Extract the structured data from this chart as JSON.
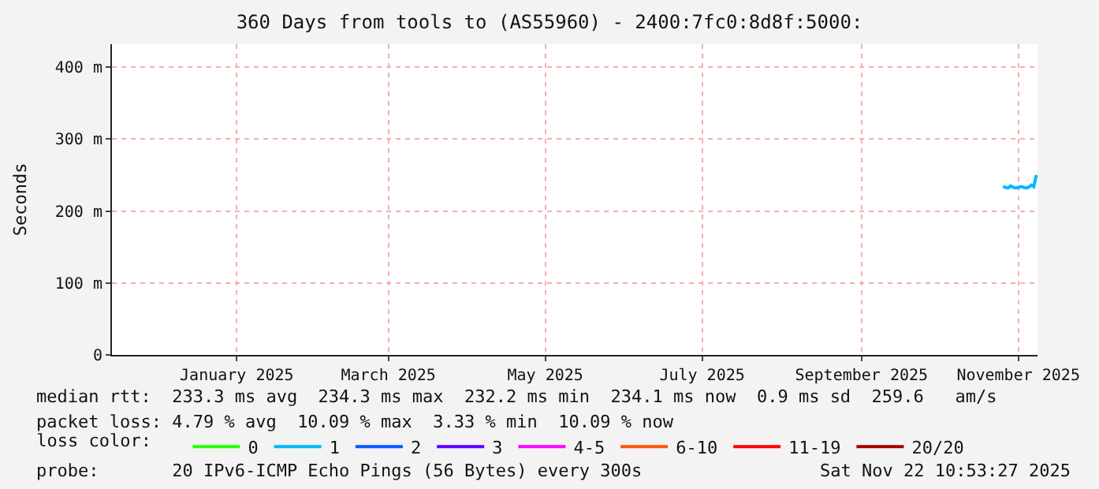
{
  "chart_data": {
    "type": "line",
    "title": "360 Days from tools to (AS55960) - 2400:7fc0:8d8f:5000:",
    "ylabel": "Seconds",
    "xlim": [
      "2024-11-27T10:53",
      "2025-11-22T10:53"
    ],
    "xticks": [
      {
        "value": "2025-01-15",
        "label": "January 2025"
      },
      {
        "value": "2025-03-15",
        "label": "March 2025"
      },
      {
        "value": "2025-05-15",
        "label": "May 2025"
      },
      {
        "value": "2025-07-15",
        "label": "July 2025"
      },
      {
        "value": "2025-09-15",
        "label": "September 2025"
      },
      {
        "value": "2025-11-15",
        "label": "November 2025"
      }
    ],
    "ylim": [
      0,
      432
    ],
    "yticks": [
      0,
      {
        "value": 100,
        "label": "100 m"
      },
      {
        "value": 200,
        "label": "200 m"
      },
      {
        "value": 300,
        "label": "300 m"
      },
      {
        "value": 400,
        "label": "400 m"
      }
    ],
    "grid": true,
    "legend": "bottom",
    "legend_title": "loss color:",
    "x": [
      "2025-11-09",
      "2025-11-10",
      "2025-11-11",
      "2025-11-12",
      "2025-11-13",
      "2025-11-14",
      "2025-11-15",
      "2025-11-16",
      "2025-11-17",
      "2025-11-18",
      "2025-11-19",
      "2025-11-20",
      "2025-11-21",
      "2025-11-22"
    ],
    "series": [
      {
        "name": "0",
        "color": "#26ff00",
        "values": [
          null,
          null,
          null,
          null,
          null,
          null,
          null,
          null,
          null,
          null,
          null,
          null,
          null,
          null
        ]
      },
      {
        "name": "1",
        "color": "#00b8ff",
        "values": [
          234,
          233,
          232,
          235,
          233,
          232,
          233,
          234,
          233,
          232,
          233,
          236,
          234,
          250
        ]
      },
      {
        "name": "2",
        "color": "#0059ff",
        "values": [
          null,
          null,
          null,
          null,
          null,
          null,
          null,
          null,
          null,
          null,
          null,
          null,
          null,
          null
        ]
      },
      {
        "name": "3",
        "color": "#5e00ff",
        "values": [
          null,
          null,
          null,
          null,
          null,
          null,
          null,
          null,
          null,
          null,
          null,
          null,
          null,
          null
        ]
      },
      {
        "name": "4-5",
        "color": "#ff00ff",
        "values": [
          null,
          null,
          null,
          null,
          null,
          null,
          null,
          null,
          null,
          null,
          null,
          null,
          null,
          null
        ]
      },
      {
        "name": "6-10",
        "color": "#ff5500",
        "values": [
          null,
          null,
          null,
          null,
          null,
          null,
          null,
          null,
          null,
          null,
          null,
          null,
          null,
          null
        ]
      },
      {
        "name": "11-19",
        "color": "#ff0000",
        "values": [
          null,
          null,
          null,
          null,
          null,
          null,
          null,
          null,
          null,
          null,
          null,
          null,
          null,
          null
        ]
      },
      {
        "name": "20/20",
        "color": "#a10000",
        "values": [
          null,
          null,
          null,
          null,
          null,
          null,
          null,
          null,
          null,
          null,
          null,
          null,
          null,
          null
        ]
      }
    ],
    "annotations": [
      "median rtt:  233.3 ms avg  234.3 ms max  232.2 ms min  234.1 ms now  0.9 ms sd  259.6   am/s",
      "packet loss: 4.79 % avg  10.09 % max  3.33 % min  10.09 % now",
      "probe:       20 IPv6-ICMP Echo Pings (56 Bytes) every 300s",
      "Sat Nov 22 10:53:27 2025"
    ]
  }
}
